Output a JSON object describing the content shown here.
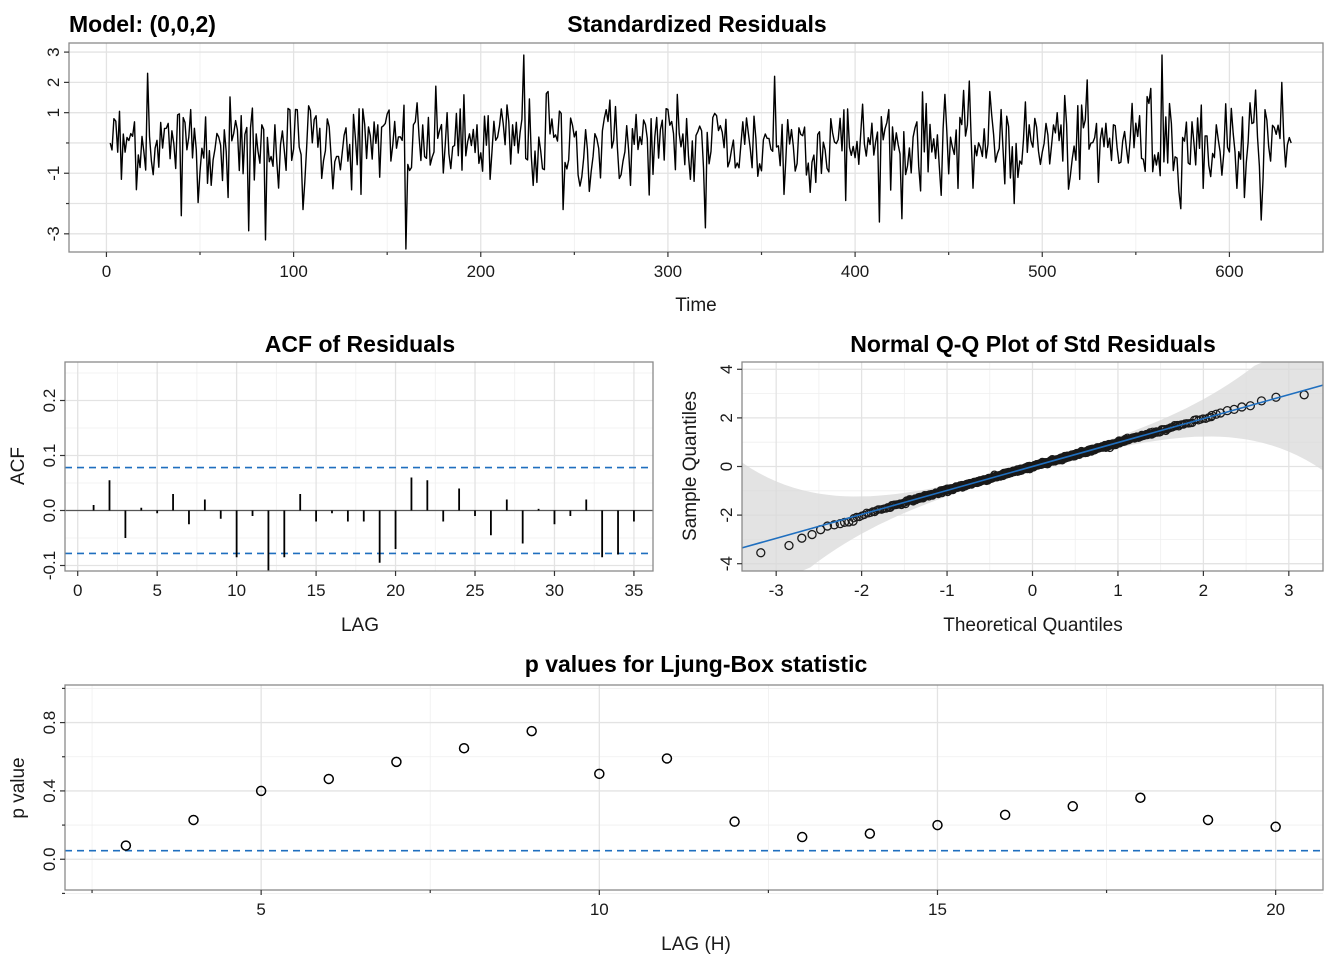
{
  "model_label": "Model: (0,0,2)",
  "colors": {
    "line": "#000000",
    "ref": "#1f6fbf",
    "band": "#d9d9d9",
    "point_stroke": "#000000"
  },
  "chart_data": [
    {
      "id": "std_residuals",
      "type": "line",
      "title": "Standardized Residuals",
      "xlabel": "Time",
      "ylabel": "",
      "xlim": [
        -20,
        650
      ],
      "ylim": [
        -3.6,
        3.3
      ],
      "xticks": [
        0,
        100,
        200,
        300,
        400,
        500,
        600
      ],
      "yticks": [
        -3,
        -1,
        1,
        2,
        3
      ],
      "grid": true,
      "n": 633,
      "x_start": 2,
      "anchors": [
        [
          2,
          0.0
        ],
        [
          4,
          0.8
        ],
        [
          8,
          -1.2
        ],
        [
          15,
          0.7
        ],
        [
          20,
          -0.3
        ],
        [
          22,
          2.3
        ],
        [
          28,
          -0.8
        ],
        [
          35,
          0.4
        ],
        [
          40,
          -2.4
        ],
        [
          45,
          1.1
        ],
        [
          52,
          -0.5
        ],
        [
          60,
          0.2
        ],
        [
          65,
          -1.8
        ],
        [
          72,
          0.9
        ],
        [
          76,
          -2.9
        ],
        [
          80,
          0.3
        ],
        [
          85,
          -3.2
        ],
        [
          90,
          0.6
        ],
        [
          100,
          -0.2
        ],
        [
          105,
          -2.2
        ],
        [
          112,
          0.9
        ],
        [
          120,
          -0.4
        ],
        [
          128,
          0.5
        ],
        [
          136,
          -1.7
        ],
        [
          145,
          0.6
        ],
        [
          152,
          -0.6
        ],
        [
          160,
          -3.6
        ],
        [
          165,
          0.7
        ],
        [
          175,
          -0.3
        ],
        [
          182,
          1.0
        ],
        [
          190,
          -0.9
        ],
        [
          198,
          0.6
        ],
        [
          205,
          -1.2
        ],
        [
          215,
          0.7
        ],
        [
          223,
          2.9
        ],
        [
          228,
          -1.4
        ],
        [
          236,
          1.7
        ],
        [
          244,
          -2.2
        ],
        [
          250,
          0.2
        ],
        [
          258,
          -1.6
        ],
        [
          265,
          0.4
        ],
        [
          272,
          1.2
        ],
        [
          280,
          -1.4
        ],
        [
          288,
          0.6
        ],
        [
          295,
          -0.5
        ],
        [
          305,
          1.6
        ],
        [
          312,
          -1.2
        ],
        [
          318,
          0.4
        ],
        [
          320,
          -2.8
        ],
        [
          326,
          0.9
        ],
        [
          333,
          -0.6
        ],
        [
          340,
          0.7
        ],
        [
          348,
          -1.1
        ],
        [
          357,
          2.2
        ],
        [
          362,
          -1.7
        ],
        [
          370,
          0.5
        ],
        [
          378,
          -0.4
        ],
        [
          387,
          0.8
        ],
        [
          395,
          -1.9
        ],
        [
          403,
          0.3
        ],
        [
          410,
          -0.4
        ],
        [
          418,
          1.1
        ],
        [
          425,
          -2.5
        ],
        [
          432,
          0.5
        ],
        [
          441,
          -0.3
        ],
        [
          448,
          1.6
        ],
        [
          455,
          -1.5
        ],
        [
          462,
          0.2
        ],
        [
          470,
          -0.5
        ],
        [
          478,
          1.1
        ],
        [
          485,
          -2.0
        ],
        [
          493,
          0.6
        ],
        [
          500,
          -0.3
        ],
        [
          508,
          1.0
        ],
        [
          515,
          -1.1
        ],
        [
          522,
          0.5
        ],
        [
          530,
          -1.3
        ],
        [
          538,
          0.6
        ],
        [
          545,
          -0.2
        ],
        [
          552,
          0.9
        ],
        [
          558,
          1.8
        ],
        [
          564,
          2.9
        ],
        [
          568,
          1.3
        ],
        [
          572,
          -0.5
        ],
        [
          580,
          0.7
        ],
        [
          586,
          -1.5
        ],
        [
          593,
          0.6
        ],
        [
          600,
          -0.3
        ],
        [
          608,
          -1.8
        ],
        [
          615,
          0.2
        ],
        [
          622,
          -0.6
        ],
        [
          628,
          2.0
        ],
        [
          633,
          0.0
        ]
      ],
      "approx_note_ignored": false
    },
    {
      "id": "acf",
      "type": "bar",
      "title": "ACF of Residuals",
      "xlabel": "LAG",
      "ylabel": "ACF",
      "xlim": [
        -0.8,
        36.2
      ],
      "ylim": [
        -0.11,
        0.27
      ],
      "xticks": [
        0,
        5,
        10,
        15,
        20,
        25,
        30,
        35
      ],
      "yticks": [
        -0.1,
        0.0,
        0.1,
        0.2
      ],
      "ytick_labels": [
        "-0.1",
        "0.0",
        "0.1",
        "0.2"
      ],
      "grid": true,
      "conf_bound": 0.078,
      "x": [
        1,
        2,
        3,
        4,
        5,
        6,
        7,
        8,
        9,
        10,
        11,
        12,
        13,
        14,
        15,
        16,
        17,
        18,
        19,
        20,
        21,
        22,
        23,
        24,
        25,
        26,
        27,
        28,
        29,
        30,
        31,
        32,
        33,
        34,
        35
      ],
      "values": [
        0.01,
        0.055,
        -0.05,
        0.005,
        -0.005,
        0.03,
        -0.025,
        0.02,
        -0.015,
        -0.085,
        -0.01,
        -0.11,
        -0.085,
        0.03,
        -0.02,
        -0.005,
        -0.02,
        -0.02,
        -0.095,
        -0.07,
        0.06,
        0.055,
        -0.02,
        0.04,
        -0.01,
        -0.045,
        0.02,
        -0.06,
        0.003,
        -0.025,
        -0.01,
        0.02,
        -0.085,
        -0.08,
        -0.02
      ]
    },
    {
      "id": "qq",
      "type": "scatter",
      "title": "Normal Q-Q Plot of Std Residuals",
      "xlabel": "Theoretical Quantiles",
      "ylabel": "Sample Quantiles",
      "xlim": [
        -3.4,
        3.4
      ],
      "ylim": [
        -4.3,
        4.3
      ],
      "xticks": [
        -3,
        -2,
        -1,
        0,
        1,
        2,
        3
      ],
      "yticks": [
        -4,
        -2,
        0,
        2,
        4
      ],
      "grid": true,
      "ref_line": {
        "intercept": 0.0,
        "slope": 1.0
      },
      "n": 633,
      "tail_points": [
        [
          -3.18,
          -3.55
        ],
        [
          -2.85,
          -3.25
        ],
        [
          -2.7,
          -2.95
        ],
        [
          -2.58,
          -2.8
        ],
        [
          -2.48,
          -2.6
        ],
        [
          -2.4,
          -2.45
        ],
        [
          -2.32,
          -2.4
        ],
        [
          -2.25,
          -2.35
        ],
        [
          -2.2,
          -2.3
        ],
        [
          -2.15,
          -2.28
        ],
        [
          -2.1,
          -2.25
        ],
        [
          2.1,
          2.1
        ],
        [
          2.15,
          2.15
        ],
        [
          2.2,
          2.2
        ],
        [
          2.28,
          2.3
        ],
        [
          2.36,
          2.35
        ],
        [
          2.45,
          2.45
        ],
        [
          2.55,
          2.5
        ],
        [
          2.68,
          2.7
        ],
        [
          2.85,
          2.85
        ],
        [
          3.18,
          2.95
        ]
      ]
    },
    {
      "id": "ljung_box",
      "type": "scatter",
      "title": "p values for Ljung-Box statistic",
      "xlabel": "LAG (H)",
      "ylabel": "p value",
      "xlim": [
        2.1,
        20.7
      ],
      "ylim": [
        -0.18,
        1.02
      ],
      "xticks": [
        5,
        10,
        15,
        20
      ],
      "yticks": [
        0.0,
        0.4,
        0.8
      ],
      "ytick_labels": [
        "0.0",
        "0.4",
        "0.8"
      ],
      "grid": true,
      "ref_line": 0.05,
      "x": [
        3,
        4,
        5,
        6,
        7,
        8,
        9,
        10,
        11,
        12,
        13,
        14,
        15,
        16,
        17,
        18,
        19,
        20
      ],
      "values": [
        0.08,
        0.23,
        0.4,
        0.47,
        0.57,
        0.65,
        0.75,
        0.5,
        0.59,
        0.22,
        0.13,
        0.15,
        0.2,
        0.26,
        0.31,
        0.36,
        0.23,
        0.19
      ]
    }
  ]
}
